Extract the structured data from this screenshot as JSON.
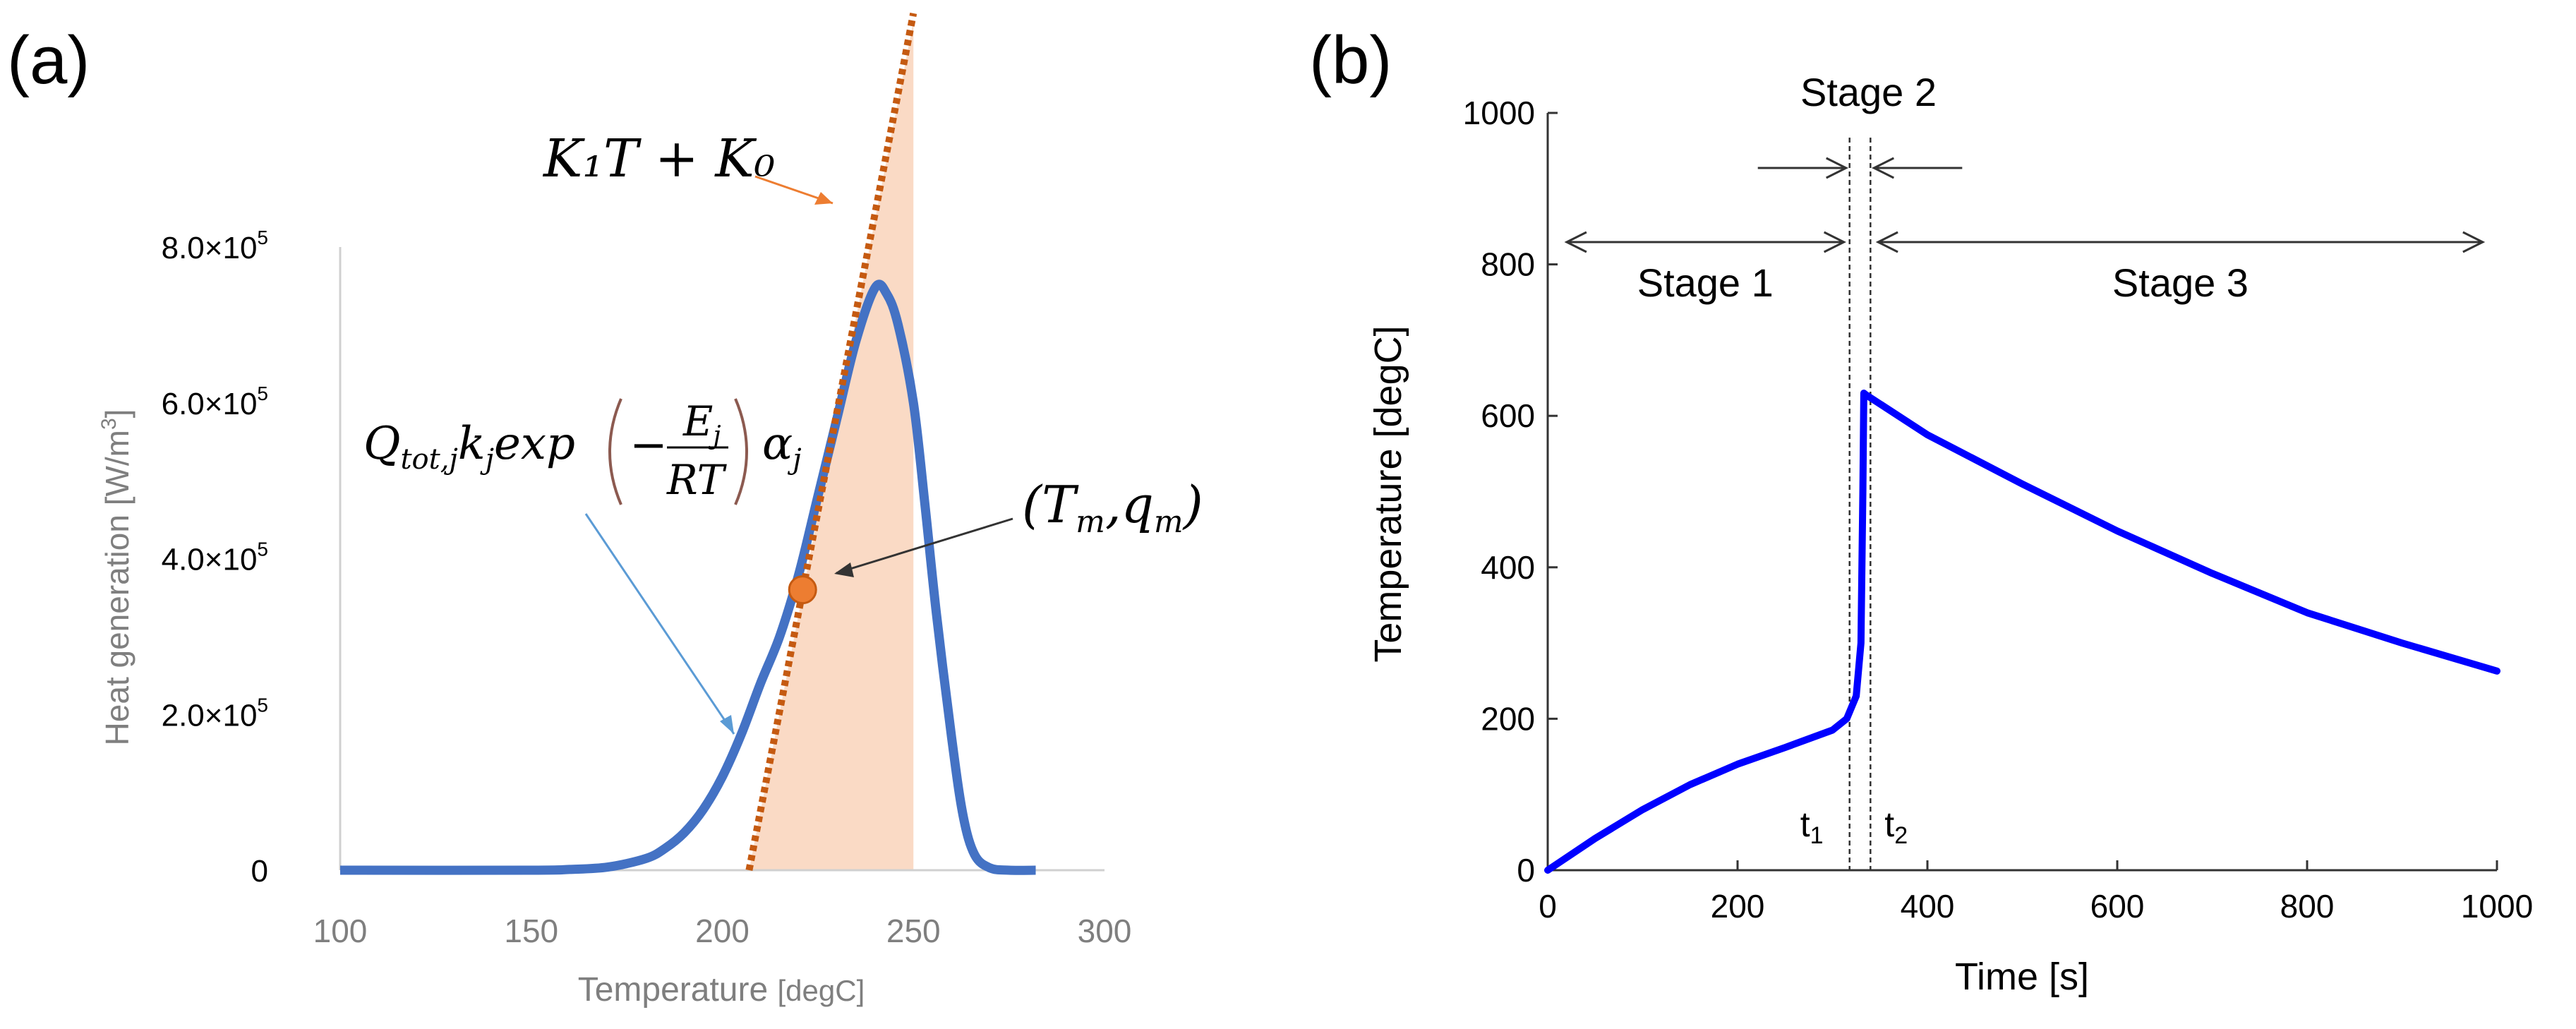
{
  "chart_data": [
    {
      "panel_label": "(a)",
      "type": "line",
      "xlabel": "Temperature ",
      "xlabel_unit": "[degC]",
      "ylabel": "Heat generation [W/m",
      "ylabel_sup": "3",
      "ylabel_close": "]",
      "xlim": [
        100,
        300
      ],
      "ylim": [
        0,
        800000
      ],
      "x_ticks": [
        100,
        150,
        200,
        250,
        300
      ],
      "y_ticks": [
        {
          "value": 0,
          "mantissa": "0",
          "times": "",
          "exp": ""
        },
        {
          "value": 200000,
          "mantissa": "2.0",
          "times": "×10",
          "exp": "5"
        },
        {
          "value": 400000,
          "mantissa": "4.0",
          "times": "×10",
          "exp": "5"
        },
        {
          "value": 600000,
          "mantissa": "6.0",
          "times": "×10",
          "exp": "5"
        },
        {
          "value": 800000,
          "mantissa": "8.0",
          "times": "×10",
          "exp": "5"
        }
      ],
      "series": [
        {
          "name": "heat generation",
          "color": "#4472c4",
          "x": [
            100,
            150,
            160,
            170,
            180,
            185,
            190,
            195,
            200,
            205,
            210,
            215,
            220,
            225,
            230,
            235,
            240,
            243,
            246,
            250,
            253,
            256,
            260,
            263,
            266,
            270,
            275,
            282
          ],
          "y": [
            0,
            0,
            1000,
            4000,
            15000,
            28000,
            48000,
            78000,
            120000,
            175000,
            240000,
            300000,
            380000,
            480000,
            580000,
            680000,
            748000,
            740000,
            700000,
            600000,
            470000,
            330000,
            170000,
            70000,
            20000,
            3000,
            0,
            0
          ]
        },
        {
          "name": "K1T+K0",
          "color": "#c55a11",
          "style": "dotted",
          "x": [
            207,
            250
          ],
          "y": [
            0,
            1100000
          ]
        }
      ],
      "shaded_region": {
        "x_start": 207,
        "x_end": 250,
        "color": "#f8cbad"
      },
      "point": {
        "x": 221,
        "y": 360000,
        "color": "#ed7d31"
      },
      "annotations": {
        "linear_fit_label": "K₁T + K₀",
        "linear_fit_color": "#c55a11",
        "equation_Q": "Q",
        "equation_Q_sub": "tot,j",
        "equation_k": "k",
        "equation_k_sub": "j",
        "equation_exp": "exp",
        "equation_minus": "−",
        "equation_E": "E",
        "equation_E_sub": "j",
        "equation_RT": "RT",
        "equation_alpha": "α",
        "equation_alpha_sub": "j",
        "equation_color": "#5b9bd5",
        "point_label": "(T",
        "point_label_m1": "m",
        "point_label_q": ",q",
        "point_label_m2": "m",
        "point_label_close": ")"
      }
    },
    {
      "panel_label": "(b)",
      "type": "line",
      "xlabel": "Time [s]",
      "ylabel": "Temperature [degC]",
      "xlim": [
        0,
        1000
      ],
      "ylim": [
        0,
        1000
      ],
      "x_ticks": [
        0,
        200,
        400,
        600,
        800,
        1000
      ],
      "y_ticks": [
        0,
        200,
        400,
        600,
        800,
        1000
      ],
      "series": [
        {
          "name": "temperature",
          "color": "#0000ff",
          "x": [
            0,
            50,
            100,
            150,
            200,
            250,
            300,
            315,
            325,
            330,
            332,
            333,
            335,
            400,
            500,
            600,
            700,
            800,
            900,
            1000
          ],
          "y": [
            0,
            42,
            80,
            113,
            140,
            162,
            185,
            200,
            230,
            300,
            500,
            630,
            628,
            575,
            510,
            448,
            392,
            340,
            300,
            263
          ]
        }
      ],
      "t_markers": [
        {
          "x": 318,
          "label": "t",
          "sub": "1"
        },
        {
          "x": 340,
          "label": "t",
          "sub": "2"
        }
      ],
      "stages": [
        {
          "label": "Stage 1",
          "x_start": 20,
          "x_end": 312
        },
        {
          "label": "Stage 2",
          "x_start": 318,
          "x_end": 340
        },
        {
          "label": "Stage 3",
          "x_start": 348,
          "x_end": 985
        }
      ]
    }
  ]
}
